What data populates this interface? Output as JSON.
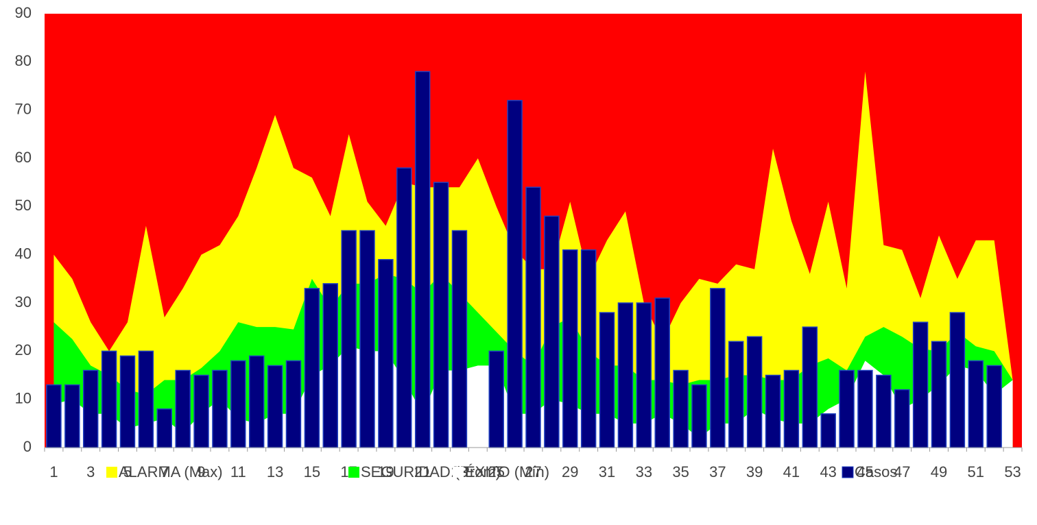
{
  "chart_data": {
    "type": "area",
    "plot_background": "#ff0000",
    "categories": [
      1,
      null,
      3,
      null,
      5,
      null,
      7,
      null,
      9,
      null,
      11,
      null,
      13,
      null,
      15,
      null,
      17,
      null,
      19,
      null,
      21,
      null,
      23,
      null,
      25,
      null,
      27,
      null,
      29,
      null,
      31,
      null,
      33,
      null,
      35,
      null,
      37,
      null,
      39,
      null,
      41,
      null,
      43,
      null,
      45,
      null,
      47,
      null,
      49,
      null,
      51,
      null,
      53
    ],
    "ylim": [
      0,
      90
    ],
    "yticks": [
      0,
      10,
      20,
      30,
      40,
      50,
      60,
      70,
      80,
      90
    ],
    "grid": false,
    "legend": "bottom",
    "series": [
      {
        "name": "ALARMA (Max)",
        "type": "area",
        "color": "#ffff00",
        "values": [
          40,
          35,
          26,
          20,
          26,
          46,
          27,
          33,
          40,
          42,
          48,
          58,
          69,
          58,
          56,
          48,
          65,
          51,
          46,
          55,
          54,
          54,
          54,
          60,
          50,
          41,
          37,
          37,
          51,
          35,
          43,
          49,
          30,
          22,
          30,
          35,
          34,
          38,
          37,
          62,
          47,
          36,
          51,
          33,
          78,
          42,
          41,
          31,
          44,
          35,
          43,
          43,
          14
        ]
      },
      {
        "name": "SEGURIDAD (Prom)",
        "type": "area",
        "color": "#00ff00",
        "values": [
          26,
          22.5,
          17,
          15,
          12,
          11,
          14,
          14,
          16.5,
          20,
          26,
          25,
          25,
          24.5,
          35,
          29,
          34,
          34,
          36,
          35,
          32,
          36,
          32,
          28,
          24,
          20,
          17,
          25,
          27,
          20,
          17,
          17,
          14,
          14,
          13,
          14,
          14,
          15,
          15,
          14,
          14,
          17,
          18.5,
          16,
          23,
          25,
          23,
          20.5,
          20,
          24,
          21,
          20,
          14
        ]
      },
      {
        "name": "ÉXITO (Mín)",
        "type": "area",
        "color": "#ffffff",
        "values": [
          9,
          10,
          7,
          7,
          4,
          5,
          6,
          3,
          7,
          10,
          6,
          5,
          7,
          7,
          15,
          17,
          21,
          20,
          20,
          14,
          7,
          16,
          16,
          17,
          17,
          7,
          7,
          10,
          9,
          7,
          7,
          5,
          5,
          7,
          5,
          2,
          5,
          5,
          8,
          6,
          5,
          5,
          8,
          10,
          18,
          15,
          8,
          10,
          13,
          17,
          16,
          11,
          14
        ]
      },
      {
        "name": "Casos",
        "type": "bar",
        "color": "#000080",
        "values": [
          13,
          13,
          16,
          20,
          19,
          20,
          8,
          16,
          15,
          16,
          18,
          19,
          17,
          18,
          33,
          34,
          45,
          45,
          39,
          58,
          78,
          55,
          45,
          null,
          20,
          72,
          54,
          48,
          41,
          41,
          28,
          30,
          30,
          31,
          16,
          13,
          33,
          22,
          23,
          15,
          16,
          25,
          7,
          16,
          16,
          15,
          12,
          26,
          22,
          28,
          18,
          17,
          null
        ]
      }
    ]
  }
}
